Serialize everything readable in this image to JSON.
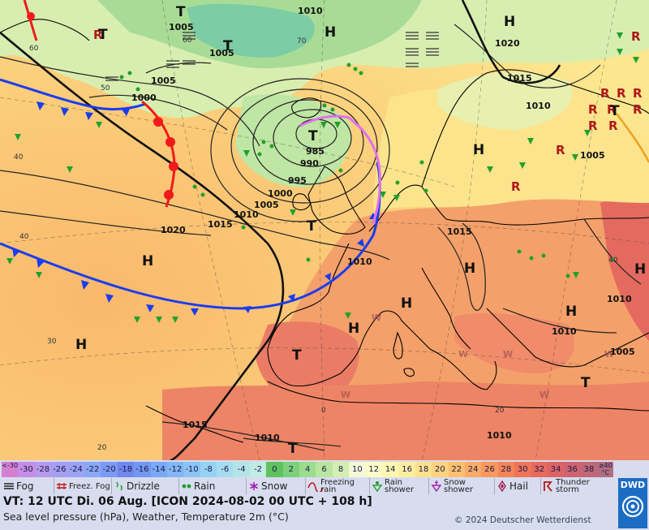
{
  "map": {
    "highs": [
      "H",
      "H",
      "H",
      "H",
      "H",
      "H",
      "H",
      "H",
      "H"
    ],
    "lows": [
      "T",
      "T",
      "T",
      "T",
      "T",
      "T",
      "T",
      "T"
    ],
    "isobars": [
      "1010",
      "1005",
      "1005",
      "1005",
      "1000",
      "985",
      "990",
      "995",
      "1000",
      "1005",
      "1010",
      "1015",
      "1020",
      "1015",
      "1010",
      "1010",
      "1010",
      "1015",
      "1010",
      "1005",
      "1010",
      "1015",
      "1020"
    ],
    "temps": [
      "60",
      "60",
      "50",
      "40",
      "40",
      "30",
      "20",
      "70",
      "0",
      "20",
      "40"
    ]
  },
  "legend": {
    "scale": [
      {
        "label": "<-30",
        "color": "#d47fd2"
      },
      {
        "label": "-30",
        "color": "#c48ee4"
      },
      {
        "label": "-28",
        "color": "#b89aea"
      },
      {
        "label": "-26",
        "color": "#a69ef0"
      },
      {
        "label": "-24",
        "color": "#9aa4f2"
      },
      {
        "label": "-22",
        "color": "#8aa8f4"
      },
      {
        "label": "-20",
        "color": "#7b9af2"
      },
      {
        "label": "-18",
        "color": "#6f88ec"
      },
      {
        "label": "-16",
        "color": "#7396f0"
      },
      {
        "label": "-14",
        "color": "#7aa8f4"
      },
      {
        "label": "-12",
        "color": "#82b6f4"
      },
      {
        "label": "-10",
        "color": "#8cc4f4"
      },
      {
        "label": "-8",
        "color": "#98d2f2"
      },
      {
        "label": "-6",
        "color": "#a6dcee"
      },
      {
        "label": "-4",
        "color": "#b4e4e8"
      },
      {
        "label": "-2",
        "color": "#c2ebe2"
      },
      {
        "label": "0",
        "color": "#5fc25f"
      },
      {
        "label": "2",
        "color": "#7cd07a"
      },
      {
        "label": "4",
        "color": "#9cdc8e"
      },
      {
        "label": "6",
        "color": "#b8e6a0"
      },
      {
        "label": "8",
        "color": "#d2eeb2"
      },
      {
        "label": "10",
        "color": "#f4f8d6"
      },
      {
        "label": "12",
        "color": "#fbfbc8"
      },
      {
        "label": "14",
        "color": "#fcf6b0"
      },
      {
        "label": "16",
        "color": "#fceea0"
      },
      {
        "label": "18",
        "color": "#fce28e"
      },
      {
        "label": "20",
        "color": "#fcd27e"
      },
      {
        "label": "22",
        "color": "#fbc070"
      },
      {
        "label": "24",
        "color": "#f9ac66"
      },
      {
        "label": "26",
        "color": "#f7985e"
      },
      {
        "label": "28",
        "color": "#f48458"
      },
      {
        "label": "30",
        "color": "#ee7458"
      },
      {
        "label": "32",
        "color": "#e66a5e"
      },
      {
        "label": "34",
        "color": "#dc6466"
      },
      {
        "label": "36",
        "color": "#ce6470"
      },
      {
        "label": "38",
        "color": "#c06878"
      },
      {
        "label": "≥40 °C",
        "color": "#b06e80"
      }
    ],
    "symbols": [
      {
        "label": "Fog",
        "icon": "fog-icon"
      },
      {
        "label": "Freez. Fog",
        "icon": "freezing-fog-icon"
      },
      {
        "label": "Drizzle",
        "icon": "drizzle-icon"
      },
      {
        "label": "Rain",
        "icon": "rain-icon"
      },
      {
        "label": "Snow",
        "icon": "snow-icon"
      },
      {
        "label": "Freezing rain",
        "icon": "freezing-rain-icon"
      },
      {
        "label": "Rain shower",
        "icon": "rain-shower-icon"
      },
      {
        "label": "Snow shower",
        "icon": "snow-shower-icon"
      },
      {
        "label": "Hail",
        "icon": "hail-icon"
      },
      {
        "label": "Thunder storm",
        "icon": "thunderstorm-icon"
      }
    ],
    "valid_time": "VT: 12 UTC Di.  06 Aug. [ICON 2024-08-02  00 UTC + 108 h]",
    "subtitle": "Sea level pressure (hPa), Weather, Temperature 2m (°C)",
    "copyright": "© 2024 Deutscher Wetterdienst",
    "logo": "DWD"
  },
  "colors": {
    "cold_front": "#1a3cf0",
    "warm_front": "#f01a1a",
    "occlusion": "#e070f0",
    "legend_bg": "#d8dcef"
  }
}
